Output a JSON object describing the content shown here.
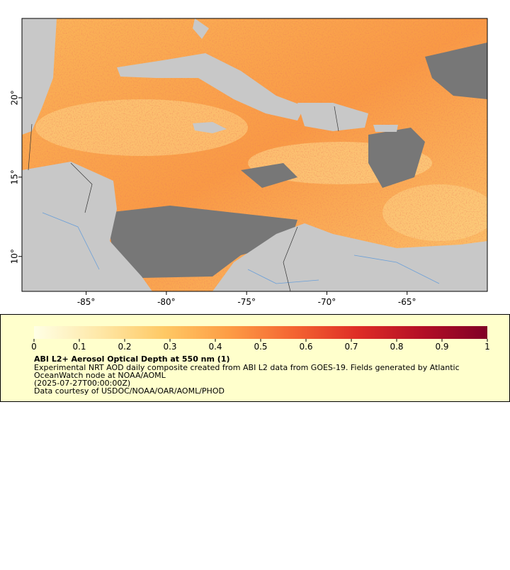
{
  "map": {
    "xlim": [
      -89,
      -60
    ],
    "ylim": [
      7.8,
      25
    ],
    "xticks": [
      {
        "value": -85,
        "label": "-85°"
      },
      {
        "value": -80,
        "label": "-80°"
      },
      {
        "value": -75,
        "label": "-75°"
      },
      {
        "value": -70,
        "label": "-70°"
      },
      {
        "value": -65,
        "label": "-65°"
      }
    ],
    "yticks": [
      {
        "value": 20,
        "label": "20°"
      },
      {
        "value": 15,
        "label": "15°"
      },
      {
        "value": 10,
        "label": "10°"
      }
    ]
  },
  "colorbar": {
    "range": [
      0,
      1
    ],
    "ticks": [
      0,
      0.1,
      0.2,
      0.3,
      0.4,
      0.5,
      0.6,
      0.7,
      0.8,
      0.9,
      1
    ],
    "colors": [
      "#ffffe5",
      "#fee8a8",
      "#fec965",
      "#fd9d45",
      "#f46532",
      "#de2d26",
      "#b30f26",
      "#800026"
    ]
  },
  "legend": {
    "title": "ABI L2+ Aerosol Optical Depth at 550 nm (1)",
    "lines": [
      "Experimental NRT AOD daily composite created from ABI L2 data from GOES-19. Fields generated by Atlantic",
      "OceanWatch node at NOAA/AOML",
      "(2025-07-27T00:00:00Z)",
      "Data courtesy of USDOC/NOAA/OAR/AOML/PHOD"
    ]
  }
}
